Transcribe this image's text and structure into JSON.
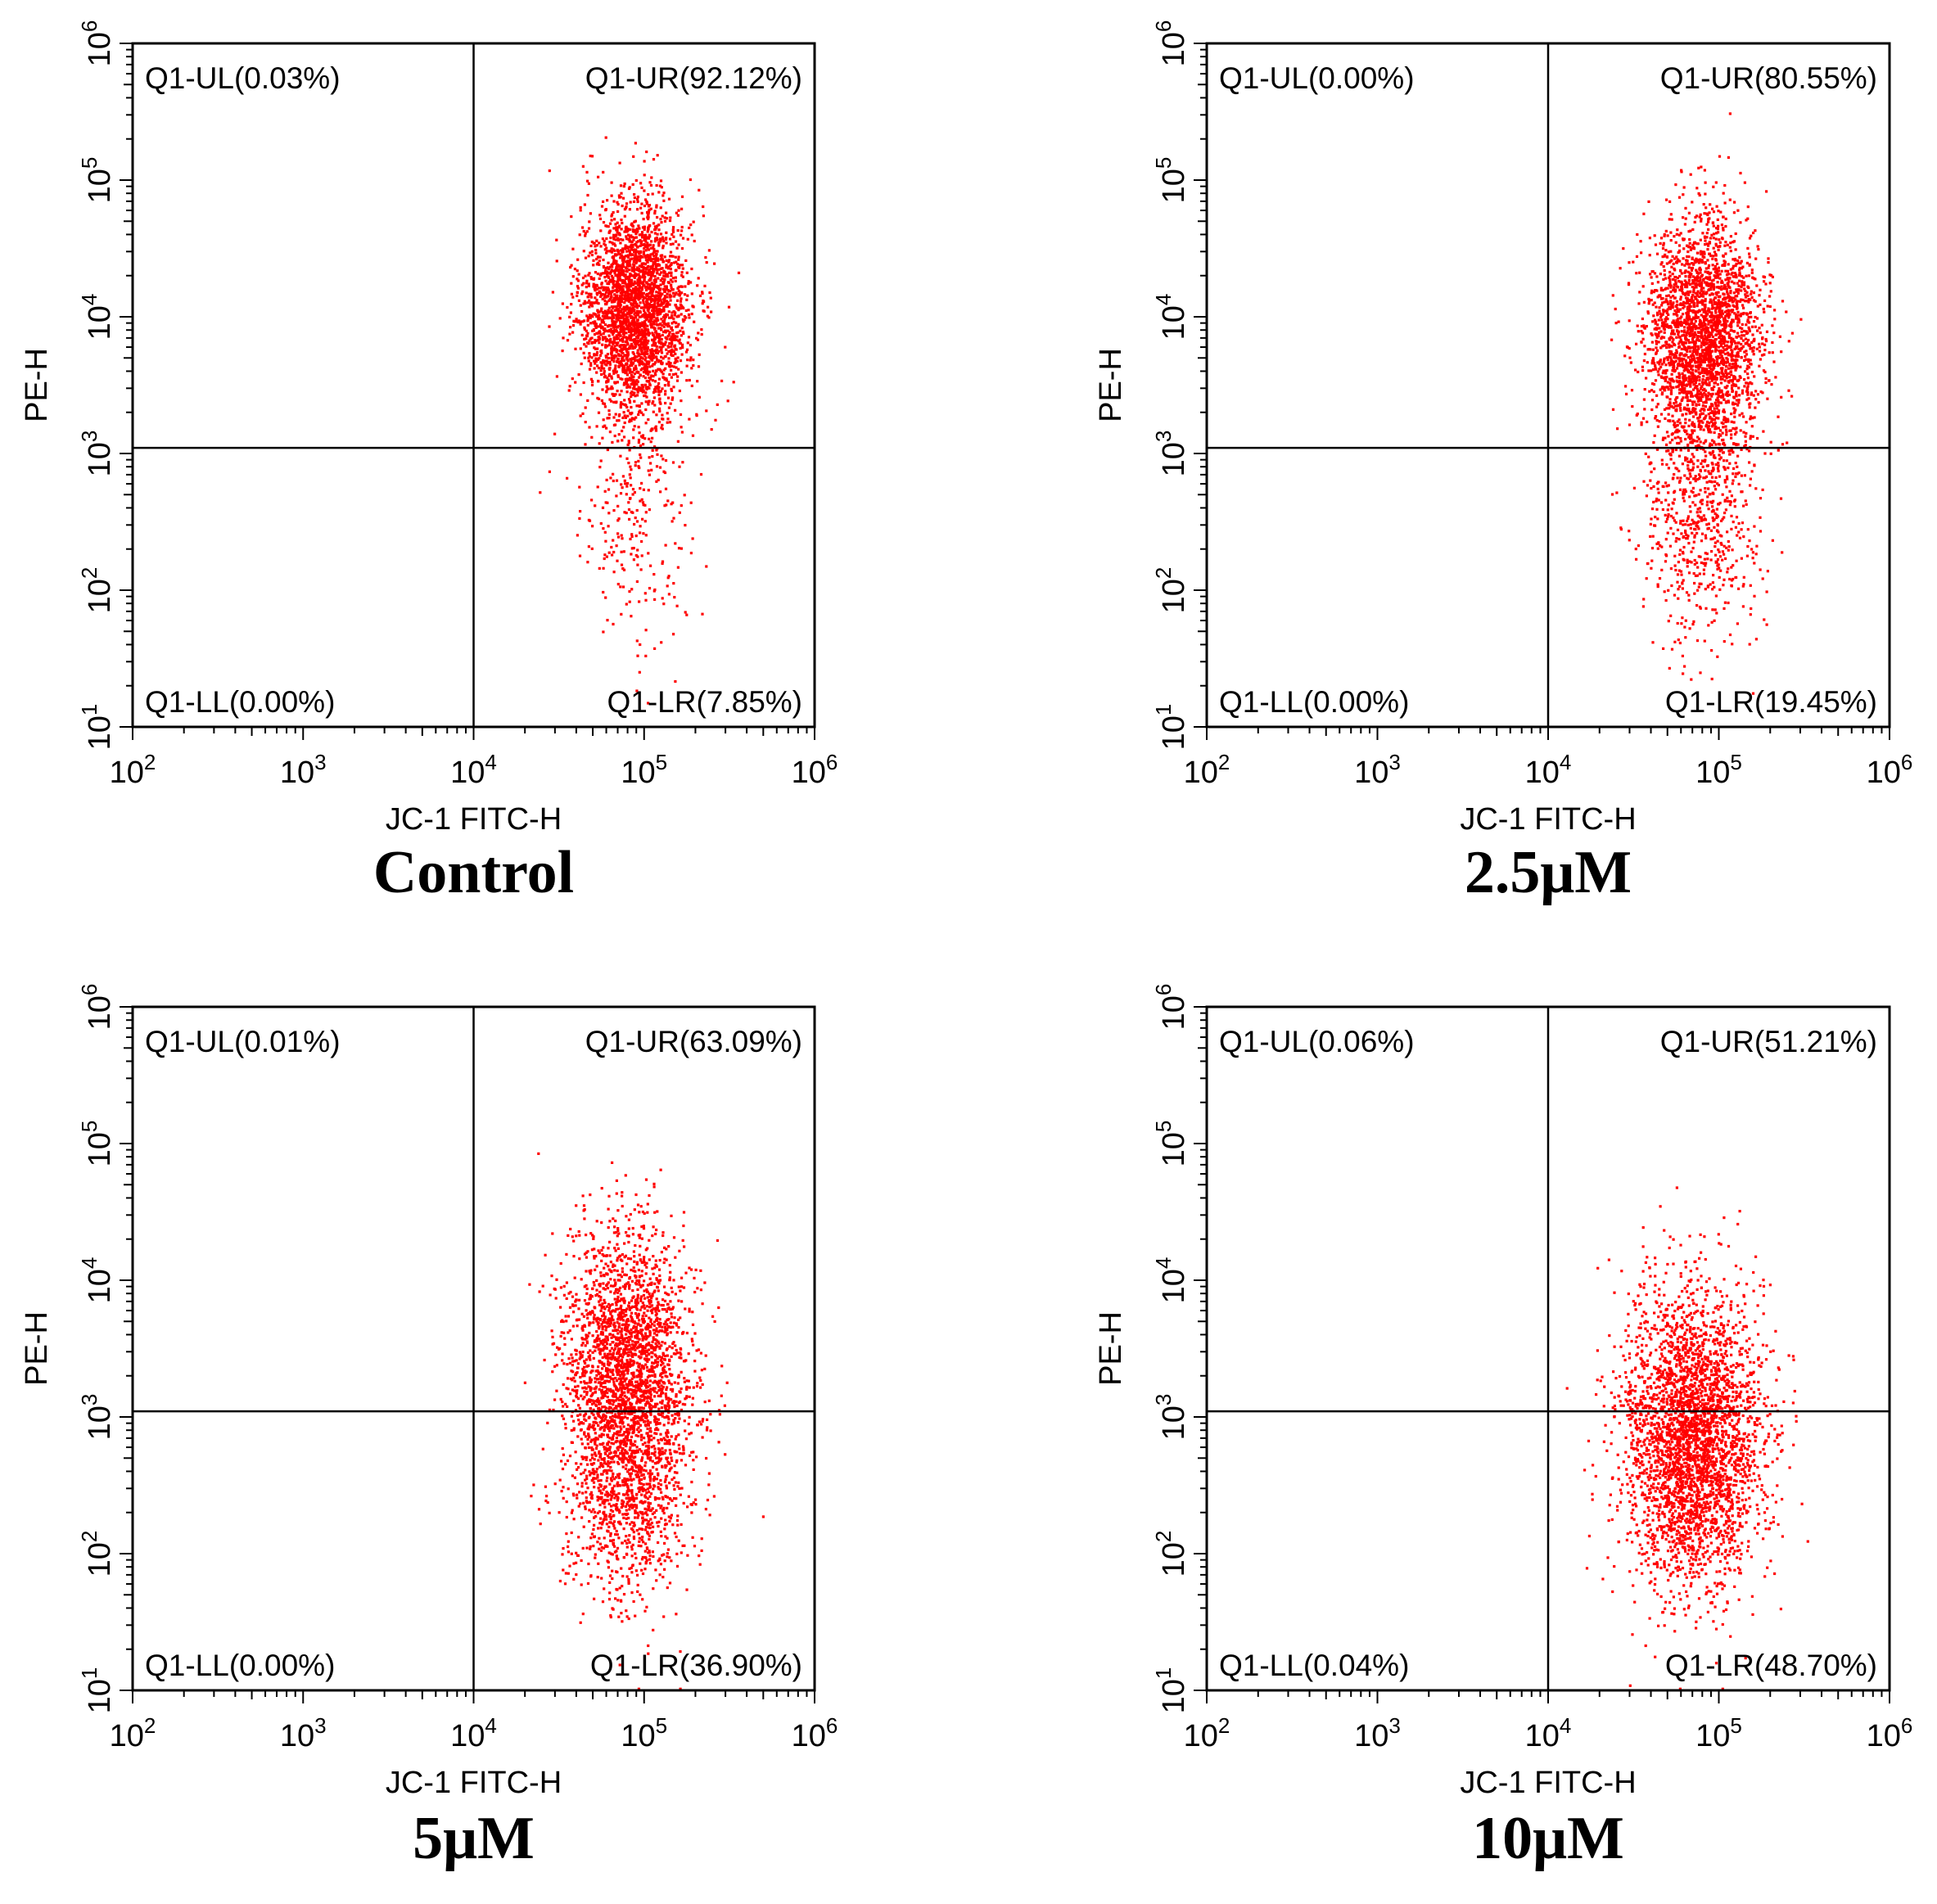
{
  "figure": {
    "dot_color": "#ff0000",
    "axis_color": "#000000"
  },
  "chart_data": [
    {
      "type": "scatter",
      "caption": "Control",
      "xlabel": "JC-1 FITC-H",
      "ylabel": "PE-H",
      "xscale": "log",
      "yscale": "log",
      "xlim": [
        100,
        1000000
      ],
      "ylim": [
        10,
        1000000
      ],
      "x_ticks": [
        "10^2",
        "10^3",
        "10^4",
        "10^5",
        "10^6"
      ],
      "y_ticks": [
        "10^1",
        "10^2",
        "10^3",
        "10^4",
        "10^5",
        "10^6"
      ],
      "gate": {
        "x": 10000,
        "y": 1100
      },
      "quadrants": {
        "UL": "Q1-UL(0.03%)",
        "UR": "Q1-UR(92.12%)",
        "LL": "Q1-LL(0.00%)",
        "LR": "Q1-LR(7.85%)"
      },
      "population": {
        "center_x_log10": 4.95,
        "center_y_log10": 4.05,
        "sd_x_log10": 0.16,
        "sd_y_log10": 0.55,
        "low_fraction": 0.08,
        "n": 3200
      }
    },
    {
      "type": "scatter",
      "caption": "2.5μM",
      "xlabel": "JC-1 FITC-H",
      "ylabel": "PE-H",
      "xscale": "log",
      "yscale": "log",
      "xlim": [
        100,
        1000000
      ],
      "ylim": [
        10,
        1000000
      ],
      "x_ticks": [
        "10^2",
        "10^3",
        "10^4",
        "10^5",
        "10^6"
      ],
      "y_ticks": [
        "10^1",
        "10^2",
        "10^3",
        "10^4",
        "10^5",
        "10^6"
      ],
      "gate": {
        "x": 10000,
        "y": 1100
      },
      "quadrants": {
        "UL": "Q1-UL(0.00%)",
        "UR": "Q1-UR(80.55%)",
        "LL": "Q1-LL(0.00%)",
        "LR": "Q1-LR(19.45%)"
      },
      "population": {
        "center_x_log10": 4.9,
        "center_y_log10": 3.85,
        "sd_x_log10": 0.17,
        "sd_y_log10": 0.6,
        "low_fraction": 0.19,
        "n": 3400
      }
    },
    {
      "type": "scatter",
      "caption": "5μM",
      "xlabel": "JC-1 FITC-H",
      "ylabel": "PE-H",
      "xscale": "log",
      "yscale": "log",
      "xlim": [
        100,
        1000000
      ],
      "ylim": [
        10,
        1000000
      ],
      "x_ticks": [
        "10^2",
        "10^3",
        "10^4",
        "10^5",
        "10^6"
      ],
      "y_ticks": [
        "10^1",
        "10^2",
        "10^3",
        "10^4",
        "10^5",
        "10^6"
      ],
      "gate": {
        "x": 10000,
        "y": 1100
      },
      "quadrants": {
        "UL": "Q1-UL(0.01%)",
        "UR": "Q1-UR(63.09%)",
        "LL": "Q1-LL(0.00%)",
        "LR": "Q1-LR(36.90%)"
      },
      "population": {
        "center_x_log10": 4.9,
        "center_y_log10": 3.45,
        "sd_x_log10": 0.18,
        "sd_y_log10": 0.65,
        "low_fraction": 0.37,
        "n": 3400
      }
    },
    {
      "type": "scatter",
      "caption": "10μM",
      "xlabel": "JC-1 FITC-H",
      "ylabel": "PE-H",
      "xscale": "log",
      "yscale": "log",
      "xlim": [
        100,
        1000000
      ],
      "ylim": [
        10,
        1000000
      ],
      "x_ticks": [
        "10^2",
        "10^3",
        "10^4",
        "10^5",
        "10^6"
      ],
      "y_ticks": [
        "10^1",
        "10^2",
        "10^3",
        "10^4",
        "10^5",
        "10^6"
      ],
      "gate": {
        "x": 10000,
        "y": 1100
      },
      "quadrants": {
        "UL": "Q1-UL(0.06%)",
        "UR": "Q1-UR(51.21%)",
        "LL": "Q1-LL(0.04%)",
        "LR": "Q1-LR(48.70%)"
      },
      "population": {
        "center_x_log10": 4.85,
        "center_y_log10": 3.1,
        "sd_x_log10": 0.2,
        "sd_y_log10": 0.7,
        "low_fraction": 0.49,
        "n": 3400
      }
    }
  ]
}
